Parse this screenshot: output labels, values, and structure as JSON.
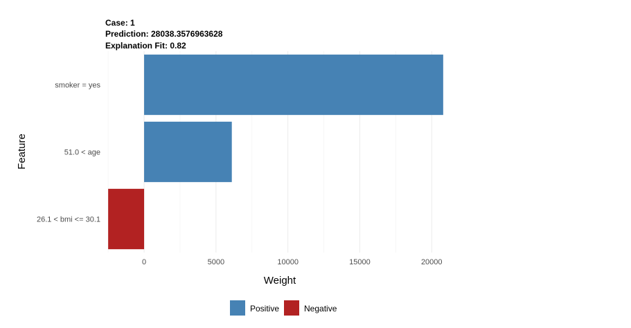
{
  "header": {
    "case": "Case: 1",
    "prediction": "Prediction: 28038.3576963628",
    "fit": "Explanation Fit: 0.82"
  },
  "chart_data": {
    "type": "bar",
    "orientation": "horizontal",
    "categories": [
      "smoker = yes",
      "51.0 < age",
      "26.1 < bmi <= 30.1"
    ],
    "values": [
      20800,
      6100,
      -2500
    ],
    "xlabel": "Weight",
    "ylabel": "Feature",
    "xlim": [
      -2700,
      21000
    ],
    "xticks": [
      0,
      5000,
      10000,
      15000,
      20000
    ],
    "xtick_labels": [
      "0",
      "5000",
      "10000",
      "15000",
      "20000"
    ],
    "grid": true,
    "legend_position": "bottom",
    "legend": [
      {
        "label": "Positive",
        "color": "#4682b4"
      },
      {
        "label": "Negative",
        "color": "#b22222"
      }
    ]
  }
}
